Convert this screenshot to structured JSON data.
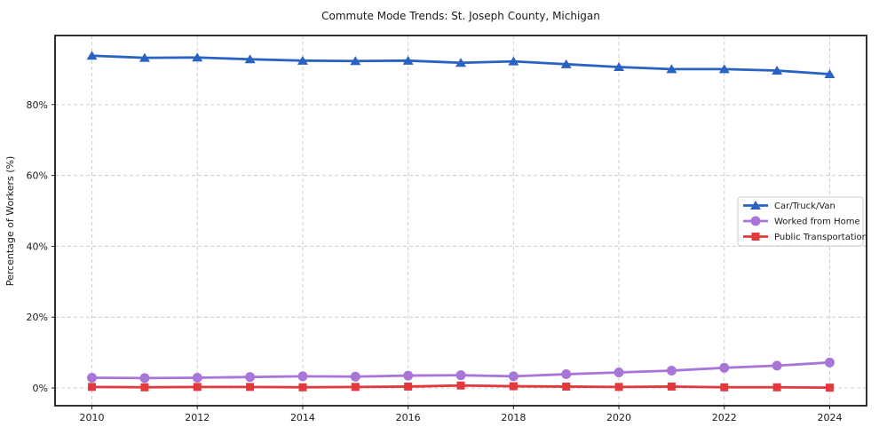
{
  "chart_data": {
    "type": "line",
    "title": "Commute Mode Trends: St. Joseph County, Michigan",
    "xlabel": "",
    "ylabel": "Percentage of Workers (%)",
    "x": [
      2010,
      2011,
      2012,
      2013,
      2014,
      2015,
      2016,
      2017,
      2018,
      2019,
      2020,
      2021,
      2022,
      2023,
      2024
    ],
    "series": [
      {
        "name": "Car/Truck/Van",
        "color": "#2a62c4",
        "marker": "triangle",
        "values": [
          93.8,
          93.2,
          93.3,
          92.8,
          92.4,
          92.3,
          92.4,
          91.8,
          92.2,
          91.4,
          90.6,
          90.0,
          90.0,
          89.6,
          88.6
        ]
      },
      {
        "name": "Worked from Home",
        "color": "#a875d8",
        "marker": "circle",
        "values": [
          2.9,
          2.8,
          2.9,
          3.1,
          3.3,
          3.2,
          3.5,
          3.6,
          3.3,
          3.9,
          4.4,
          4.9,
          5.7,
          6.3,
          7.2
        ]
      },
      {
        "name": "Public Transportation",
        "color": "#e2393c",
        "marker": "square",
        "values": [
          0.3,
          0.2,
          0.3,
          0.3,
          0.2,
          0.3,
          0.4,
          0.7,
          0.5,
          0.4,
          0.3,
          0.4,
          0.2,
          0.2,
          0.1
        ]
      }
    ],
    "xticks": [
      2010,
      2012,
      2014,
      2016,
      2018,
      2020,
      2022,
      2024
    ],
    "yticks": [
      0,
      20,
      40,
      60,
      80
    ],
    "ytick_suffix": "%",
    "xlim": [
      2009.3,
      2024.7
    ],
    "ylim": [
      -5,
      99.5
    ],
    "grid": true,
    "grid_style": "dashed",
    "grid_color": "#cccccc",
    "spine_color": "#1a1a1a",
    "legend": {
      "position": "center-right",
      "labels": [
        "Car/Truck/Van",
        "Worked from Home",
        "Public Transportation"
      ],
      "border_color": "#cccccc",
      "background": "#ffffff"
    }
  }
}
